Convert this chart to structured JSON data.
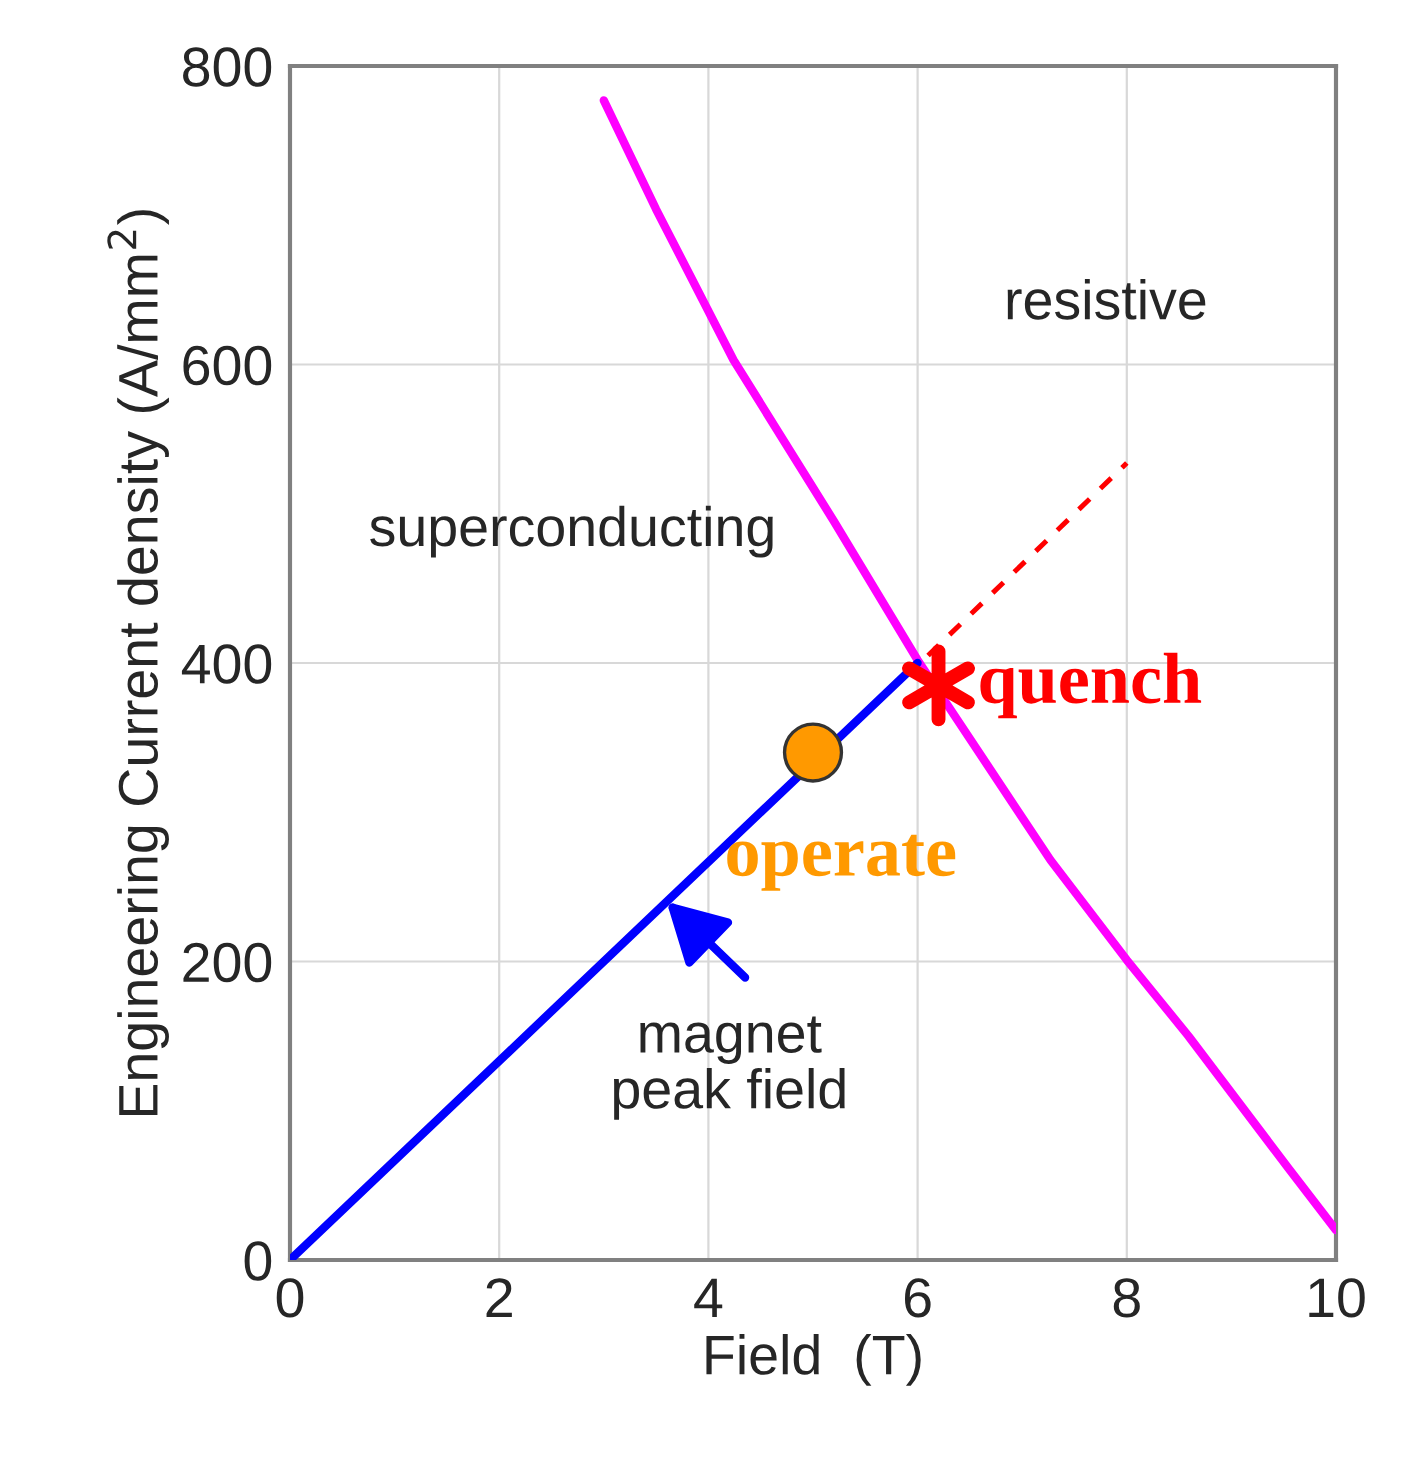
{
  "chart_data": {
    "type": "line",
    "xlabel": "Field  (T)",
    "ylabel": "Engineering Current density (A/mm$^{2}$)",
    "xlim": [
      0,
      10
    ],
    "ylim": [
      0,
      800
    ],
    "xticks": [
      0,
      2,
      4,
      6,
      8,
      10
    ],
    "yticks": [
      0,
      200,
      400,
      600,
      800
    ],
    "grid": true,
    "series": [
      {
        "color": "#ff00ff",
        "line_style": "solid",
        "x": [
          3.0,
          3.5,
          4.24,
          5.2,
          6.0,
          7.27,
          8.0,
          8.59,
          9.54,
          10.0
        ],
        "values": [
          777,
          704,
          603,
          495,
          402,
          268,
          201,
          150,
          62,
          20
        ]
      },
      {
        "color": "#0000ff",
        "line_style": "solid",
        "x": [
          0,
          6
        ],
        "values": [
          0,
          400
        ]
      },
      {
        "color": "#ff0000",
        "line_style": "dashed",
        "x": [
          6.1,
          8.0
        ],
        "values": [
          405,
          534
        ]
      },
      {
        "type": "scatter",
        "name": "operate",
        "color": "#ff9900",
        "marker": "circle",
        "x": [
          5.0
        ],
        "values": [
          340
        ]
      },
      {
        "type": "scatter",
        "name": "quench",
        "color": "#ff0000",
        "marker": "cross",
        "x": [
          6.2
        ],
        "values": [
          385
        ]
      }
    ],
    "annotations": [
      "resistive",
      "superconducting",
      {
        "text": "magnet\npeak field",
        "x": 3.6,
        "y": 240
      }
    ]
  }
}
